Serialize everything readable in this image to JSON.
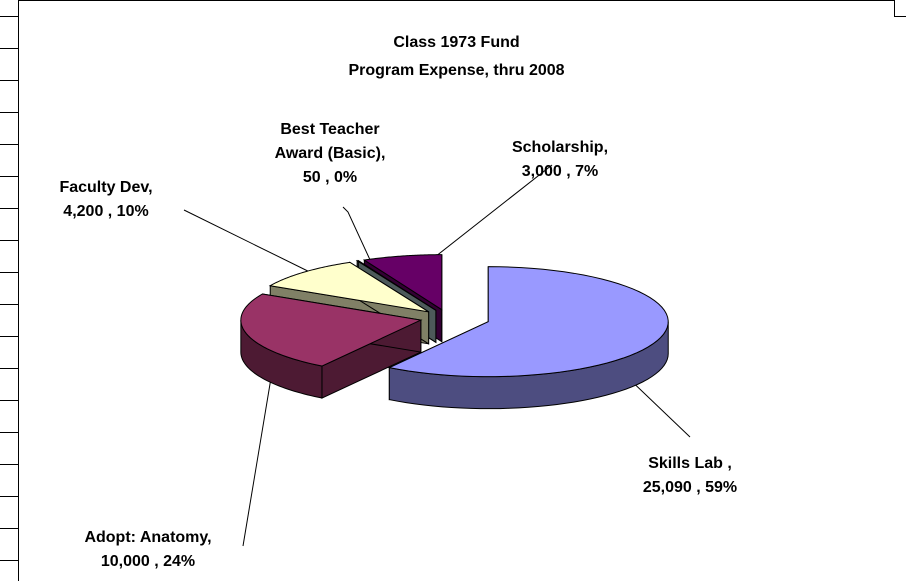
{
  "chart_data": {
    "type": "pie",
    "title": "Class 1973 Fund",
    "subtitle": "Program Expense, thru 2008",
    "categories": [
      "Skills Lab ,",
      "Adopt: Anatomy,",
      "Faculty Dev,",
      "Best Teacher Award (Basic),",
      "Scholarship,"
    ],
    "values": [
      25090,
      10000,
      4200,
      50,
      3000
    ],
    "value_labels": [
      "25,090 , 59%",
      "10,000 , 24%",
      "4,200 , 10%",
      "50 , 0%",
      "3,000 , 7%"
    ],
    "colors": [
      "#9999ff",
      "#993366",
      "#ffffcc",
      "#99b3b3",
      "#660066"
    ],
    "three_d": true,
    "exploded": true
  }
}
